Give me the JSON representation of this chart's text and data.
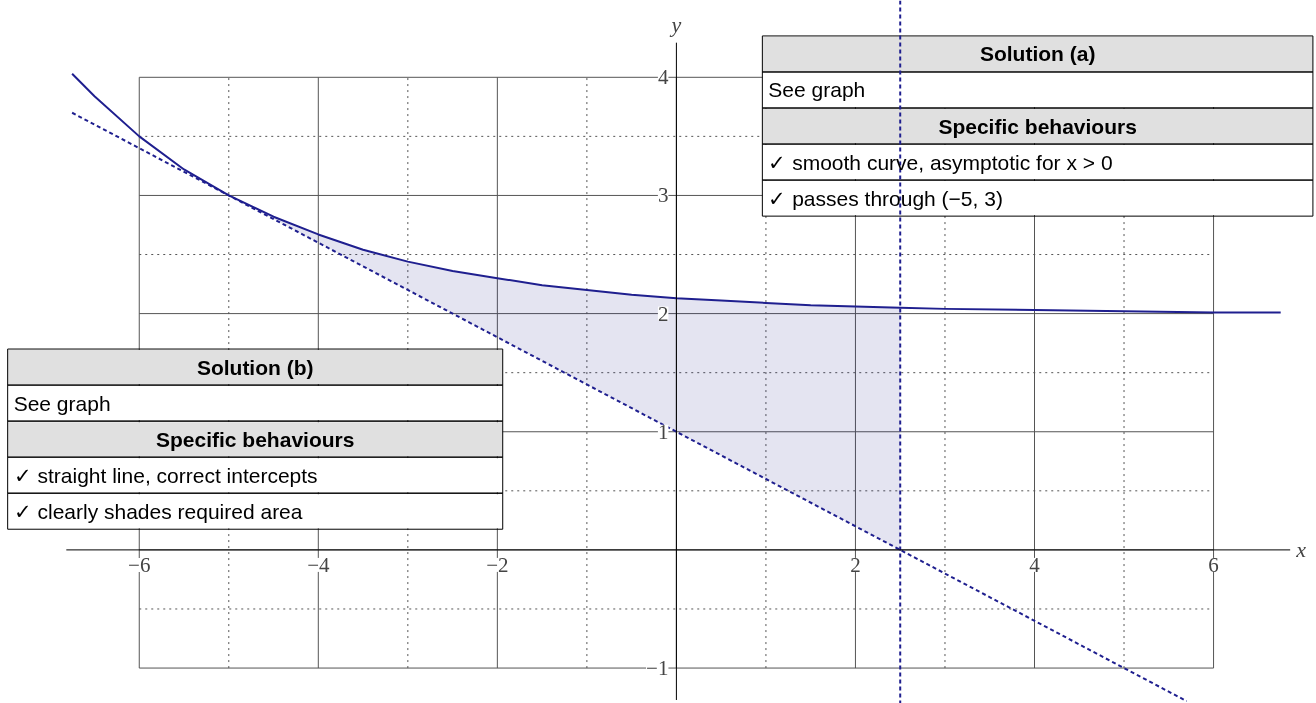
{
  "chart_data": {
    "type": "line",
    "xlabel": "x",
    "ylabel": "y",
    "xlim": [
      -7.55,
      7.15
    ],
    "ylim": [
      -1.3,
      4.65
    ],
    "xticks": [
      {
        "value": -6,
        "label": "−6"
      },
      {
        "value": -4,
        "label": "−4"
      },
      {
        "value": -2,
        "label": "−2"
      },
      {
        "value": 0,
        "label": null
      },
      2,
      4,
      6
    ],
    "yticks": [
      {
        "value": -1,
        "label": "−1"
      },
      {
        "value": 0,
        "label": null
      },
      1,
      2,
      3,
      4
    ],
    "grid": true,
    "series": [
      {
        "color": "#1f1f8f",
        "line_style": "solid",
        "x": [
          -6.75,
          -6.5,
          -6,
          -5.5,
          -5,
          -4.5,
          -4,
          -3.5,
          -3,
          -2.5,
          -2,
          -1.5,
          -1,
          -0.5,
          0,
          0.5,
          1,
          1.5,
          2,
          2.5,
          3,
          4,
          5,
          6,
          6.75
        ],
        "values": [
          4.03,
          3.84,
          3.5,
          3.22,
          3,
          2.82,
          2.67,
          2.54,
          2.44,
          2.36,
          2.3,
          2.24,
          2.2,
          2.16,
          2.13,
          2.11,
          2.09,
          2.07,
          2.06,
          2.05,
          2.04,
          2.03,
          2.02,
          2.01,
          2.01
        ],
        "lower": [
          null,
          null,
          null,
          null,
          3,
          2.8,
          2.6,
          2.4,
          2.2,
          2.0,
          1.8,
          1.6,
          1.4,
          1.2,
          1.0,
          0.8,
          0.6,
          0.4,
          0.2,
          0,
          null,
          null,
          null,
          null,
          null
        ],
        "upper": [
          null,
          null,
          null,
          null,
          3,
          2.82,
          2.67,
          2.54,
          2.44,
          2.36,
          2.3,
          2.24,
          2.2,
          2.16,
          2.13,
          2.11,
          2.09,
          2.07,
          2.06,
          2.05,
          null,
          null,
          null,
          null,
          null
        ]
      },
      {
        "color": "#1f1f8f",
        "line_style": "dashed",
        "x": [
          -6.75,
          5.7
        ],
        "values": [
          3.7,
          -1.28
        ]
      }
    ],
    "ref_lines": [
      {
        "axis": "x",
        "value": 2.5,
        "color": "#1f1f8f",
        "line_style": "dashed"
      }
    ],
    "annotations": [
      "Solution (a)",
      "See graph",
      "Specific behaviours",
      "✓ smooth curve, asymptotic for x > 0",
      "✓ passes through (−5, 3)",
      "Solution (b)",
      "See graph",
      "Specific behaviours",
      "✓ straight line, correct intercepts",
      "✓ clearly shades required area"
    ]
  }
}
